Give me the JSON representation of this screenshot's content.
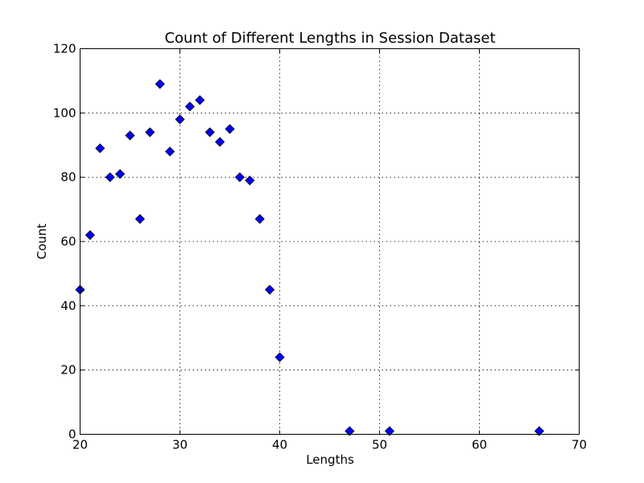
{
  "chart_data": {
    "type": "scatter",
    "title": "Count of Different Lengths in Session Dataset",
    "xlabel": "Lengths",
    "ylabel": "Count",
    "xlim": [
      20,
      70
    ],
    "ylim": [
      0,
      120
    ],
    "xticks": [
      20,
      30,
      40,
      50,
      60,
      70
    ],
    "yticks": [
      0,
      20,
      40,
      60,
      80,
      100,
      120
    ],
    "grid": true,
    "marker": "diamond",
    "marker_color": "#0000ff",
    "series": [
      {
        "x": [
          20,
          21,
          22,
          23,
          24,
          25,
          26,
          27,
          28,
          29,
          30,
          31,
          32,
          33,
          34,
          35,
          36,
          37,
          38,
          39,
          40,
          47,
          51,
          66
        ],
        "y": [
          45,
          62,
          89,
          80,
          81,
          93,
          67,
          94,
          109,
          88,
          98,
          102,
          104,
          94,
          91,
          95,
          80,
          79,
          67,
          45,
          24,
          1,
          1,
          1
        ]
      }
    ]
  }
}
